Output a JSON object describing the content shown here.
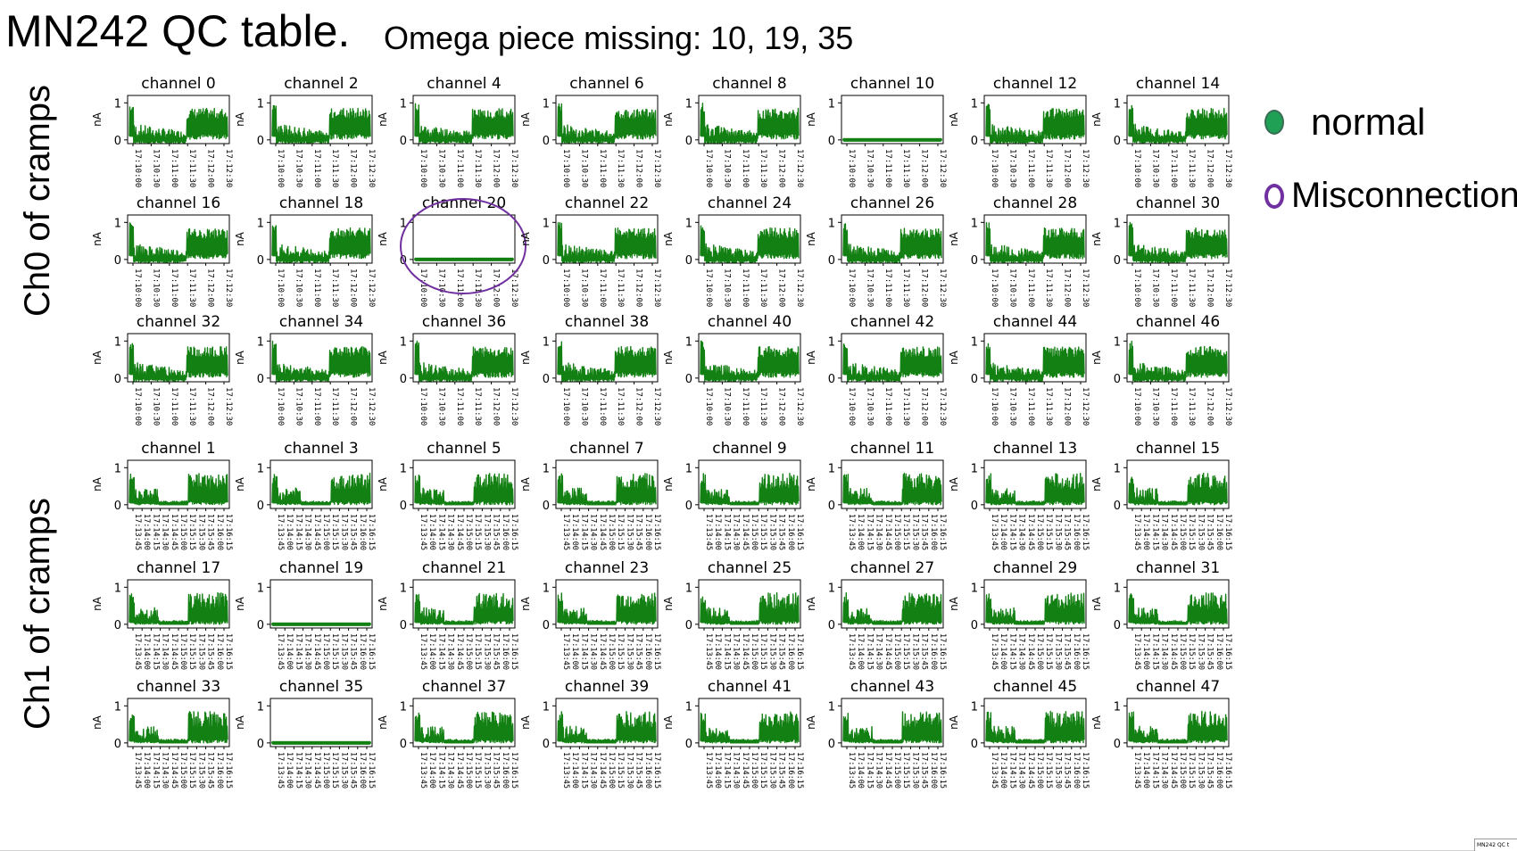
{
  "title": "MN242 QC table.",
  "subtitle": "Omega piece missing: 10, 19, 35",
  "row_labels": [
    "Ch0 of cramps",
    "Ch1 of cramps"
  ],
  "legend": [
    {
      "label": "normal",
      "marker": "filled-circle",
      "color": "#1fa055"
    },
    {
      "label": "Misconnection",
      "marker": "open-circle",
      "color": "#7030a0"
    }
  ],
  "footer_thumbnail": "MN242 QC t",
  "chart_data": {
    "type": "line",
    "plot_color": "#138013",
    "ylabel": "nA",
    "ylim": [
      -0.1,
      1.2
    ],
    "yticks": [
      0,
      1
    ],
    "groups": [
      {
        "name": "Ch0 of cramps",
        "xticks": [
          "17:10:00",
          "17:10:30",
          "17:11:00",
          "17:11:30",
          "17:12:00",
          "17:12:30"
        ],
        "panels": [
          {
            "title": "channel 0",
            "channel": 0,
            "status": "normal",
            "active": true
          },
          {
            "title": "channel 2",
            "channel": 2,
            "status": "normal",
            "active": true
          },
          {
            "title": "channel 4",
            "channel": 4,
            "status": "normal",
            "active": true
          },
          {
            "title": "channel 6",
            "channel": 6,
            "status": "normal",
            "active": true
          },
          {
            "title": "channel 8",
            "channel": 8,
            "status": "normal",
            "active": true
          },
          {
            "title": "channel 10",
            "channel": 10,
            "status": "flat",
            "active": false
          },
          {
            "title": "channel 12",
            "channel": 12,
            "status": "normal",
            "active": true
          },
          {
            "title": "channel 14",
            "channel": 14,
            "status": "normal",
            "active": true
          },
          {
            "title": "channel 16",
            "channel": 16,
            "status": "normal",
            "active": true
          },
          {
            "title": "channel 18",
            "channel": 18,
            "status": "normal",
            "active": true
          },
          {
            "title": "channel 20",
            "channel": 20,
            "status": "misconnection",
            "active": false
          },
          {
            "title": "channel 22",
            "channel": 22,
            "status": "normal",
            "active": true
          },
          {
            "title": "channel 24",
            "channel": 24,
            "status": "normal",
            "active": true
          },
          {
            "title": "channel 26",
            "channel": 26,
            "status": "normal",
            "active": true
          },
          {
            "title": "channel 28",
            "channel": 28,
            "status": "normal",
            "active": true
          },
          {
            "title": "channel 30",
            "channel": 30,
            "status": "normal",
            "active": true
          },
          {
            "title": "channel 32",
            "channel": 32,
            "status": "normal",
            "active": true
          },
          {
            "title": "channel 34",
            "channel": 34,
            "status": "normal",
            "active": true
          },
          {
            "title": "channel 36",
            "channel": 36,
            "status": "normal",
            "active": true
          },
          {
            "title": "channel 38",
            "channel": 38,
            "status": "normal",
            "active": true
          },
          {
            "title": "channel 40",
            "channel": 40,
            "status": "normal",
            "active": true
          },
          {
            "title": "channel 42",
            "channel": 42,
            "status": "normal",
            "active": true
          },
          {
            "title": "channel 44",
            "channel": 44,
            "status": "normal",
            "active": true
          },
          {
            "title": "channel 46",
            "channel": 46,
            "status": "normal",
            "active": true
          }
        ]
      },
      {
        "name": "Ch1 of cramps",
        "xticks": [
          "17:13:45",
          "17:14:00",
          "17:14:15",
          "17:14:30",
          "17:14:45",
          "17:15:00",
          "17:15:15",
          "17:15:30",
          "17:15:45",
          "17:16:00",
          "17:16:15"
        ],
        "panels": [
          {
            "title": "channel 1",
            "channel": 1,
            "status": "normal",
            "active": true
          },
          {
            "title": "channel 3",
            "channel": 3,
            "status": "normal",
            "active": true
          },
          {
            "title": "channel 5",
            "channel": 5,
            "status": "normal",
            "active": true
          },
          {
            "title": "channel 7",
            "channel": 7,
            "status": "normal",
            "active": true
          },
          {
            "title": "channel 9",
            "channel": 9,
            "status": "normal",
            "active": true
          },
          {
            "title": "channel 11",
            "channel": 11,
            "status": "normal",
            "active": true
          },
          {
            "title": "channel 13",
            "channel": 13,
            "status": "normal",
            "active": true
          },
          {
            "title": "channel 15",
            "channel": 15,
            "status": "normal",
            "active": true
          },
          {
            "title": "channel 17",
            "channel": 17,
            "status": "normal",
            "active": true
          },
          {
            "title": "channel 19",
            "channel": 19,
            "status": "flat",
            "active": false
          },
          {
            "title": "channel 21",
            "channel": 21,
            "status": "normal",
            "active": true
          },
          {
            "title": "channel 23",
            "channel": 23,
            "status": "normal",
            "active": true
          },
          {
            "title": "channel 25",
            "channel": 25,
            "status": "normal",
            "active": true
          },
          {
            "title": "channel 27",
            "channel": 27,
            "status": "normal",
            "active": true
          },
          {
            "title": "channel 29",
            "channel": 29,
            "status": "normal",
            "active": true
          },
          {
            "title": "channel 31",
            "channel": 31,
            "status": "normal",
            "active": true
          },
          {
            "title": "channel 33",
            "channel": 33,
            "status": "normal",
            "active": true
          },
          {
            "title": "channel 35",
            "channel": 35,
            "status": "flat",
            "active": false
          },
          {
            "title": "channel 37",
            "channel": 37,
            "status": "normal",
            "active": true
          },
          {
            "title": "channel 39",
            "channel": 39,
            "status": "normal",
            "active": true
          },
          {
            "title": "channel 41",
            "channel": 41,
            "status": "normal",
            "active": true
          },
          {
            "title": "channel 43",
            "channel": 43,
            "status": "normal",
            "active": true
          },
          {
            "title": "channel 45",
            "channel": 45,
            "status": "normal",
            "active": true
          },
          {
            "title": "channel 47",
            "channel": 47,
            "status": "normal",
            "active": true
          }
        ]
      }
    ]
  }
}
